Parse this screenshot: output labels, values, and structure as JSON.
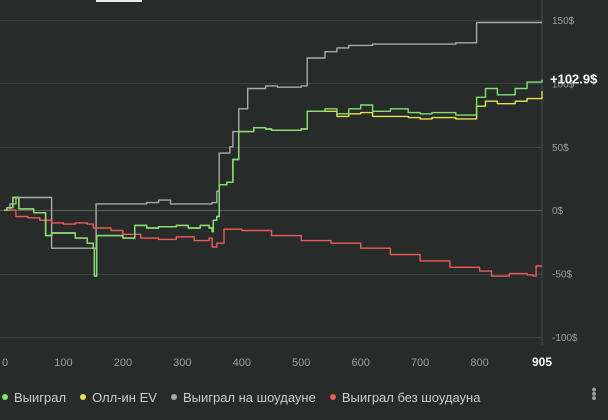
{
  "chart_data": {
    "type": "line",
    "final_label": "+102.9$",
    "x_end_label": "905",
    "xlim": [
      0,
      905
    ],
    "ylim": [
      -100,
      150
    ],
    "x_ticks": [
      "0",
      "100",
      "200",
      "300",
      "400",
      "500",
      "600",
      "700",
      "800"
    ],
    "y_ticks": [
      "150$",
      "100$",
      "50$",
      "0$",
      "-50$",
      "-100$"
    ],
    "series": [
      {
        "name": "Выиграл",
        "color": "#7ee36f",
        "points": [
          [
            0,
            0
          ],
          [
            5,
            2
          ],
          [
            15,
            10
          ],
          [
            25,
            1
          ],
          [
            50,
            -2
          ],
          [
            70,
            -20
          ],
          [
            80,
            -18
          ],
          [
            120,
            -22
          ],
          [
            140,
            -26
          ],
          [
            150,
            -30
          ],
          [
            152,
            -52
          ],
          [
            156,
            -20
          ],
          [
            200,
            -22
          ],
          [
            220,
            -12
          ],
          [
            240,
            -14
          ],
          [
            260,
            -13
          ],
          [
            290,
            -12
          ],
          [
            310,
            -14
          ],
          [
            330,
            -12
          ],
          [
            345,
            -14
          ],
          [
            350,
            -17
          ],
          [
            352,
            -8
          ],
          [
            358,
            -5
          ],
          [
            362,
            20
          ],
          [
            375,
            22
          ],
          [
            385,
            40
          ],
          [
            395,
            62
          ],
          [
            420,
            65
          ],
          [
            440,
            64
          ],
          [
            450,
            63
          ],
          [
            480,
            63
          ],
          [
            500,
            64
          ],
          [
            510,
            78
          ],
          [
            540,
            80
          ],
          [
            560,
            76
          ],
          [
            580,
            80
          ],
          [
            600,
            83
          ],
          [
            620,
            78
          ],
          [
            650,
            80
          ],
          [
            680,
            77
          ],
          [
            700,
            76
          ],
          [
            720,
            77
          ],
          [
            760,
            75
          ],
          [
            790,
            75
          ],
          [
            795,
            89
          ],
          [
            810,
            96
          ],
          [
            830,
            91
          ],
          [
            860,
            96
          ],
          [
            880,
            101
          ],
          [
            905,
            102.9
          ]
        ]
      },
      {
        "name": "Олл-ин EV",
        "color": "#e9e24d",
        "points": [
          [
            0,
            0
          ],
          [
            5,
            2
          ],
          [
            15,
            10
          ],
          [
            25,
            1
          ],
          [
            50,
            -2
          ],
          [
            70,
            -20
          ],
          [
            80,
            -18
          ],
          [
            120,
            -22
          ],
          [
            140,
            -26
          ],
          [
            150,
            -30
          ],
          [
            152,
            -52
          ],
          [
            156,
            -20
          ],
          [
            200,
            -22
          ],
          [
            220,
            -12
          ],
          [
            240,
            -14
          ],
          [
            260,
            -13
          ],
          [
            290,
            -12
          ],
          [
            310,
            -14
          ],
          [
            330,
            -12
          ],
          [
            345,
            -14
          ],
          [
            350,
            -17
          ],
          [
            352,
            -8
          ],
          [
            358,
            -5
          ],
          [
            362,
            20
          ],
          [
            375,
            22
          ],
          [
            385,
            40
          ],
          [
            395,
            62
          ],
          [
            420,
            65
          ],
          [
            440,
            64
          ],
          [
            450,
            63
          ],
          [
            480,
            63
          ],
          [
            500,
            64
          ],
          [
            510,
            78
          ],
          [
            540,
            78
          ],
          [
            560,
            74
          ],
          [
            580,
            76
          ],
          [
            600,
            77
          ],
          [
            620,
            74
          ],
          [
            650,
            74
          ],
          [
            680,
            73
          ],
          [
            700,
            72
          ],
          [
            720,
            73
          ],
          [
            760,
            72
          ],
          [
            790,
            72
          ],
          [
            795,
            82
          ],
          [
            810,
            86
          ],
          [
            830,
            84
          ],
          [
            860,
            86
          ],
          [
            880,
            88
          ],
          [
            905,
            94
          ]
        ]
      },
      {
        "name": "Выиграл на шоудауне",
        "color": "#a9abaa",
        "points": [
          [
            0,
            0
          ],
          [
            10,
            5
          ],
          [
            20,
            10
          ],
          [
            75,
            10
          ],
          [
            80,
            -30
          ],
          [
            150,
            -30
          ],
          [
            155,
            5
          ],
          [
            160,
            5
          ],
          [
            240,
            6
          ],
          [
            260,
            8
          ],
          [
            280,
            5
          ],
          [
            350,
            6
          ],
          [
            358,
            15
          ],
          [
            362,
            45
          ],
          [
            380,
            50
          ],
          [
            385,
            62
          ],
          [
            395,
            80
          ],
          [
            410,
            96
          ],
          [
            440,
            98
          ],
          [
            460,
            97
          ],
          [
            500,
            98
          ],
          [
            510,
            120
          ],
          [
            540,
            125
          ],
          [
            560,
            128
          ],
          [
            580,
            130
          ],
          [
            600,
            130
          ],
          [
            620,
            131
          ],
          [
            680,
            131
          ],
          [
            760,
            132
          ],
          [
            790,
            132
          ],
          [
            795,
            148
          ],
          [
            820,
            148
          ],
          [
            860,
            148
          ],
          [
            905,
            148
          ]
        ]
      },
      {
        "name": "Выиграл без шоудауна",
        "color": "#ef5a56",
        "points": [
          [
            0,
            0
          ],
          [
            20,
            -5
          ],
          [
            40,
            -6
          ],
          [
            60,
            -8
          ],
          [
            80,
            -10
          ],
          [
            100,
            -11
          ],
          [
            120,
            -10
          ],
          [
            140,
            -11
          ],
          [
            150,
            -14
          ],
          [
            160,
            -14
          ],
          [
            180,
            -16
          ],
          [
            200,
            -19
          ],
          [
            230,
            -22
          ],
          [
            260,
            -23
          ],
          [
            290,
            -21
          ],
          [
            320,
            -24
          ],
          [
            345,
            -22
          ],
          [
            350,
            -29
          ],
          [
            358,
            -26
          ],
          [
            370,
            -15
          ],
          [
            400,
            -16
          ],
          [
            450,
            -20
          ],
          [
            500,
            -24
          ],
          [
            550,
            -26
          ],
          [
            600,
            -30
          ],
          [
            650,
            -35
          ],
          [
            700,
            -40
          ],
          [
            750,
            -45
          ],
          [
            800,
            -48
          ],
          [
            820,
            -52
          ],
          [
            850,
            -50
          ],
          [
            880,
            -51
          ],
          [
            890,
            -52
          ],
          [
            895,
            -44
          ],
          [
            905,
            -44
          ]
        ]
      }
    ]
  }
}
